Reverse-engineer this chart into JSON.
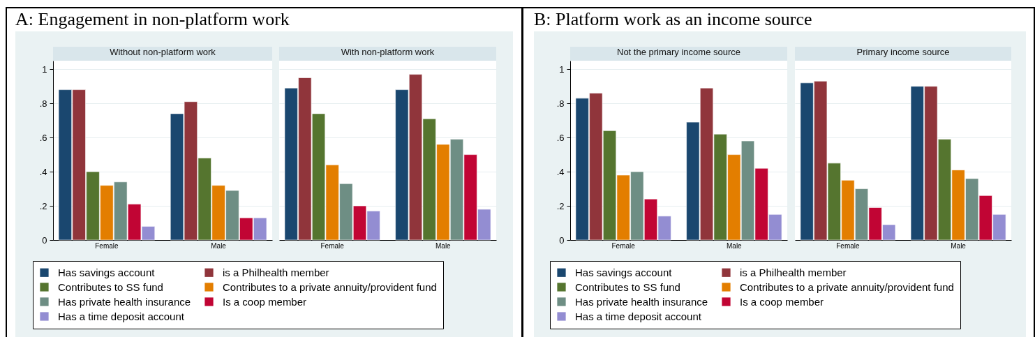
{
  "chart_data": [
    {
      "type": "bar",
      "title": "A: Engagement in non-platform work",
      "subtitle": "Without non-platform work",
      "categories": [
        "Female",
        "Male"
      ],
      "series": [
        {
          "name": "Has savings account",
          "color": "#1a476f",
          "values": [
            0.88,
            0.74
          ]
        },
        {
          "name": "is a Philhealth member",
          "color": "#90353b",
          "values": [
            0.88,
            0.81
          ]
        },
        {
          "name": "Contributes to SS fund",
          "color": "#55752f",
          "values": [
            0.4,
            0.48
          ]
        },
        {
          "name": "Contributes to a private annuity/provident fund",
          "color": "#e37e00",
          "values": [
            0.32,
            0.32
          ]
        },
        {
          "name": "Has private health insurance",
          "color": "#6e8e84",
          "values": [
            0.34,
            0.29
          ]
        },
        {
          "name": "Is a coop member",
          "color": "#c10534",
          "values": [
            0.21,
            0.13
          ]
        },
        {
          "name": "Has a time deposit account",
          "color": "#938dd2",
          "values": [
            0.08,
            0.13
          ]
        }
      ],
      "ylim": [
        0,
        1.05
      ],
      "yticks": [
        0,
        {
          "value": 0.2,
          "label": ".2"
        },
        {
          "value": 0.4,
          "label": ".4"
        },
        {
          "value": 0.6,
          "label": ".6"
        },
        {
          "value": 0.8,
          "label": ".8"
        },
        1
      ],
      "grid": "y",
      "legend": "bottom"
    },
    {
      "type": "bar",
      "subtitle": "With non-platform work",
      "categories": [
        "Female",
        "Male"
      ],
      "series": [
        {
          "color": "#1a476f",
          "values": [
            0.89,
            0.88
          ]
        },
        {
          "color": "#90353b",
          "values": [
            0.95,
            0.97
          ]
        },
        {
          "color": "#55752f",
          "values": [
            0.74,
            0.71
          ]
        },
        {
          "color": "#e37e00",
          "values": [
            0.44,
            0.56
          ]
        },
        {
          "color": "#6e8e84",
          "values": [
            0.33,
            0.59
          ]
        },
        {
          "color": "#c10534",
          "values": [
            0.2,
            0.5
          ]
        },
        {
          "color": "#938dd2",
          "values": [
            0.17,
            0.18
          ]
        }
      ],
      "ylim": [
        0,
        1.05
      ],
      "yticks": [
        0,
        0.2,
        0.4,
        0.6,
        0.8,
        1
      ],
      "grid": "y",
      "tick_labels": "x"
    },
    {
      "type": "bar",
      "title": "B: Platform work as an income source",
      "subtitle": "Not the primary income source",
      "categories": [
        "Female",
        "Male"
      ],
      "series": [
        {
          "name": "Has savings account",
          "color": "#1a476f",
          "values": [
            0.83,
            0.69
          ]
        },
        {
          "name": "is a Philhealth member",
          "color": "#90353b",
          "values": [
            0.86,
            0.89
          ]
        },
        {
          "name": "Contributes to SS fund",
          "color": "#55752f",
          "values": [
            0.64,
            0.62
          ]
        },
        {
          "name": "Contributes to a private annuity/provident fund",
          "color": "#e37e00",
          "values": [
            0.38,
            0.5
          ]
        },
        {
          "name": "Has private health insurance",
          "color": "#6e8e84",
          "values": [
            0.4,
            0.58
          ]
        },
        {
          "name": "Is a coop member",
          "color": "#c10534",
          "values": [
            0.24,
            0.42
          ]
        },
        {
          "name": "Has a time deposit account",
          "color": "#938dd2",
          "values": [
            0.14,
            0.15
          ]
        }
      ],
      "ylim": [
        0,
        1.05
      ],
      "yticks": [
        0,
        {
          "value": 0.2,
          "label": ".2"
        },
        {
          "value": 0.4,
          "label": ".4"
        },
        {
          "value": 0.6,
          "label": ".6"
        },
        {
          "value": 0.8,
          "label": ".8"
        },
        1
      ],
      "grid": "y",
      "legend": "bottom"
    },
    {
      "type": "bar",
      "subtitle": "Primary income source",
      "categories": [
        "Female",
        "Male"
      ],
      "series": [
        {
          "color": "#1a476f",
          "values": [
            0.92,
            0.9
          ]
        },
        {
          "color": "#90353b",
          "values": [
            0.93,
            0.9
          ]
        },
        {
          "color": "#55752f",
          "values": [
            0.45,
            0.59
          ]
        },
        {
          "color": "#e37e00",
          "values": [
            0.35,
            0.41
          ]
        },
        {
          "color": "#6e8e84",
          "values": [
            0.3,
            0.36
          ]
        },
        {
          "color": "#c10534",
          "values": [
            0.19,
            0.26
          ]
        },
        {
          "color": "#938dd2",
          "values": [
            0.09,
            0.15
          ]
        }
      ],
      "ylim": [
        0,
        1.05
      ],
      "yticks": [
        0,
        0.2,
        0.4,
        0.6,
        0.8,
        1
      ],
      "grid": "y",
      "tick_labels": "x"
    }
  ]
}
